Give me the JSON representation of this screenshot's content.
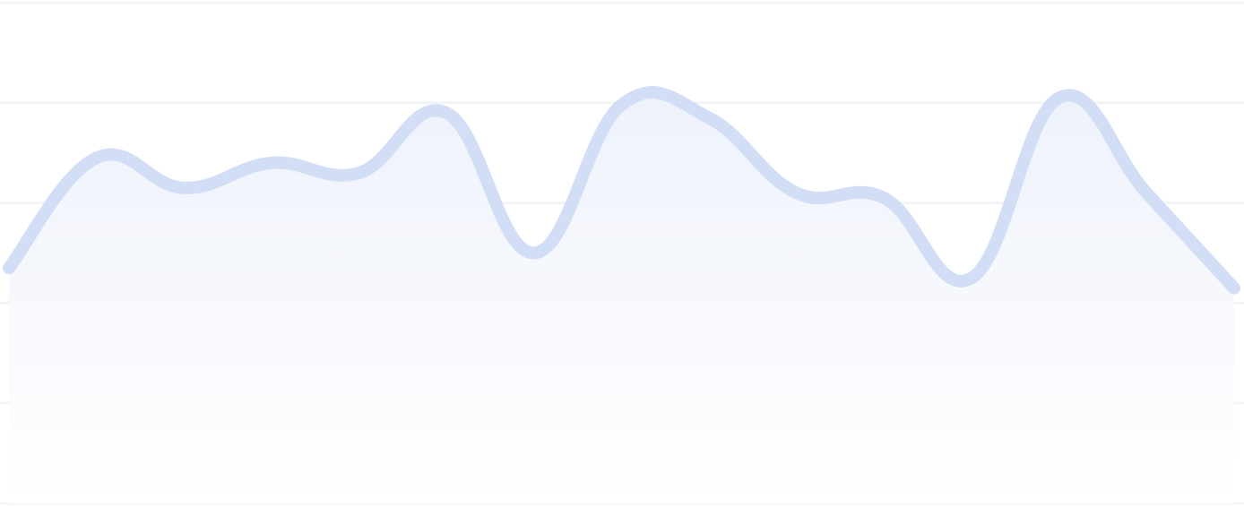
{
  "chart_data": {
    "type": "area",
    "title": "",
    "xlabel": "",
    "ylabel": "",
    "grid": true,
    "legend": "none",
    "ylim": [
      0,
      5
    ],
    "x": [
      0,
      1,
      2,
      3,
      4,
      5,
      6,
      7,
      8,
      9,
      10,
      11,
      12,
      13,
      14
    ],
    "series": [
      {
        "values": [
          2.35,
          3.45,
          3.15,
          3.4,
          3.3,
          3.9,
          2.5,
          3.98,
          3.85,
          3.1,
          3.05,
          2.25,
          4.05,
          3.1,
          2.15
        ]
      }
    ]
  },
  "style": {
    "line_color": "#d2def5",
    "area_top_color": "#eef2fb",
    "area_bottom_color": "#ffffff",
    "grid_color": "#f3f4f6"
  }
}
